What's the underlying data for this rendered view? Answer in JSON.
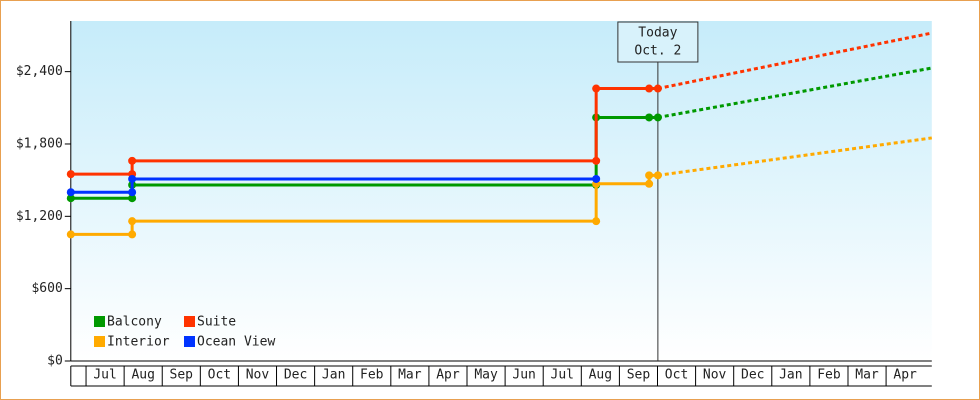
{
  "chart_data": {
    "type": "step-line",
    "xlim": [
      -0.4,
      22.2
    ],
    "xticks": [
      {
        "value": 0.5,
        "label": "Jul"
      },
      {
        "value": 1.5,
        "label": "Aug"
      },
      {
        "value": 2.5,
        "label": "Sep"
      },
      {
        "value": 3.5,
        "label": "Oct"
      },
      {
        "value": 4.5,
        "label": "Nov"
      },
      {
        "value": 5.5,
        "label": "Dec"
      },
      {
        "value": 6.5,
        "label": "Jan"
      },
      {
        "value": 7.5,
        "label": "Feb"
      },
      {
        "value": 8.5,
        "label": "Mar"
      },
      {
        "value": 9.5,
        "label": "Apr"
      },
      {
        "value": 10.5,
        "label": "May"
      },
      {
        "value": 11.5,
        "label": "Jun"
      },
      {
        "value": 12.5,
        "label": "Jul"
      },
      {
        "value": 13.5,
        "label": "Aug"
      },
      {
        "value": 14.5,
        "label": "Sep"
      },
      {
        "value": 15.5,
        "label": "Oct"
      },
      {
        "value": 16.5,
        "label": "Nov"
      },
      {
        "value": 17.5,
        "label": "Dec"
      },
      {
        "value": 18.5,
        "label": "Jan"
      },
      {
        "value": 19.5,
        "label": "Feb"
      },
      {
        "value": 20.5,
        "label": "Mar"
      },
      {
        "value": 21.5,
        "label": "Apr"
      }
    ],
    "ylim": [
      0,
      2820
    ],
    "yticks": [
      {
        "value": 0,
        "label": "$0"
      },
      {
        "value": 600,
        "label": "$600"
      },
      {
        "value": 1200,
        "label": "$1,200"
      },
      {
        "value": 1800,
        "label": "$1,800"
      },
      {
        "value": 2400,
        "label": "$2,400"
      }
    ],
    "today": {
      "x": 15.01,
      "label": "Today",
      "date": "Oct. 2"
    },
    "series": [
      {
        "name": "Balcony",
        "color": "#009900",
        "x": [
          -0.4,
          1.21,
          1.21,
          13.39,
          13.39,
          14.78,
          15.01
        ],
        "values": [
          1350,
          1350,
          1460,
          1460,
          2020,
          2020,
          2020
        ],
        "forecast_x": [
          15.01,
          22.2
        ],
        "forecast": [
          2020,
          2430
        ]
      },
      {
        "name": "Suite",
        "color": "#ff3300",
        "x": [
          -0.4,
          1.21,
          1.21,
          13.39,
          13.39,
          14.78,
          15.01
        ],
        "values": [
          1550,
          1550,
          1660,
          1660,
          2260,
          2260,
          2260
        ],
        "forecast_x": [
          15.01,
          22.2
        ],
        "forecast": [
          2260,
          2720
        ]
      },
      {
        "name": "Interior",
        "color": "#ffaa00",
        "x": [
          -0.4,
          1.21,
          1.21,
          13.39,
          13.39,
          14.78,
          14.78,
          15.01
        ],
        "values": [
          1050,
          1050,
          1160,
          1160,
          1470,
          1470,
          1540,
          1540
        ],
        "forecast_x": [
          15.01,
          22.2
        ],
        "forecast": [
          1540,
          1850
        ]
      },
      {
        "name": "Ocean View",
        "color": "#0033ff",
        "x": [
          -0.4,
          1.21,
          1.21,
          13.39
        ],
        "values": [
          1400,
          1400,
          1510,
          1510
        ]
      }
    ]
  }
}
